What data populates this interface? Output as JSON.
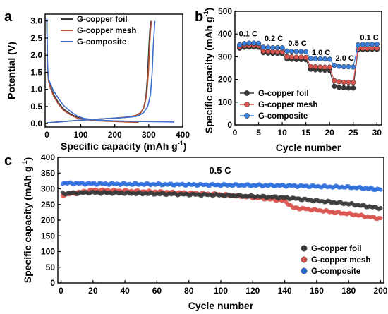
{
  "chart_data": [
    {
      "panel": "a",
      "type": "line",
      "xlabel": "Specific capacity (mAh g",
      "xlabel_sup": "-1",
      "xlabel_tail": ")",
      "ylabel": "Potential (V)",
      "xlim": [
        -5,
        400
      ],
      "ylim": [
        -0.1,
        3.2
      ],
      "xticks": [
        "0",
        "100",
        "200",
        "300",
        "400"
      ],
      "yticks": [
        "0.0",
        "0.5",
        "1.0",
        "1.5",
        "2.0",
        "2.5",
        "3.0"
      ],
      "legend_position": "top-right",
      "series": [
        {
          "name": "G-copper foil",
          "color": "#3a3a3a",
          "discharge": [
            [
              0,
              3.05
            ],
            [
              2,
              1.6
            ],
            [
              5,
              1.25
            ],
            [
              10,
              1.1
            ],
            [
              20,
              0.85
            ],
            [
              35,
              0.6
            ],
            [
              50,
              0.42
            ],
            [
              70,
              0.28
            ],
            [
              90,
              0.18
            ],
            [
              110,
              0.13
            ],
            [
              150,
              0.09
            ],
            [
              200,
              0.07
            ],
            [
              250,
              0.05
            ],
            [
              270,
              0.03
            ]
          ],
          "charge": [
            [
              0,
              0.02
            ],
            [
              50,
              0.06
            ],
            [
              100,
              0.1
            ],
            [
              150,
              0.13
            ],
            [
              200,
              0.16
            ],
            [
              240,
              0.19
            ],
            [
              260,
              0.22
            ],
            [
              275,
              0.3
            ],
            [
              285,
              0.45
            ],
            [
              292,
              0.8
            ],
            [
              297,
              1.5
            ],
            [
              300,
              2.2
            ],
            [
              303,
              2.7
            ],
            [
              306,
              3.0
            ]
          ]
        },
        {
          "name": "G-copper mesh",
          "color": "#b5533c",
          "discharge": [
            [
              0,
              3.05
            ],
            [
              2,
              1.6
            ],
            [
              5,
              1.25
            ],
            [
              10,
              1.05
            ],
            [
              20,
              0.8
            ],
            [
              35,
              0.55
            ],
            [
              50,
              0.38
            ],
            [
              70,
              0.25
            ],
            [
              90,
              0.16
            ],
            [
              110,
              0.12
            ],
            [
              150,
              0.08
            ],
            [
              200,
              0.06
            ],
            [
              250,
              0.04
            ],
            [
              270,
              0.02
            ]
          ],
          "charge": [
            [
              0,
              0.02
            ],
            [
              50,
              0.06
            ],
            [
              100,
              0.1
            ],
            [
              150,
              0.13
            ],
            [
              200,
              0.16
            ],
            [
              240,
              0.2
            ],
            [
              262,
              0.24
            ],
            [
              277,
              0.33
            ],
            [
              287,
              0.5
            ],
            [
              294,
              0.85
            ],
            [
              299,
              1.5
            ],
            [
              302,
              2.2
            ],
            [
              305,
              2.7
            ],
            [
              308,
              3.0
            ]
          ]
        },
        {
          "name": "G-composite",
          "color": "#3b6fcb",
          "discharge": [
            [
              0,
              3.08
            ],
            [
              2,
              1.7
            ],
            [
              5,
              1.3
            ],
            [
              10,
              1.18
            ],
            [
              20,
              0.95
            ],
            [
              35,
              0.72
            ],
            [
              50,
              0.52
            ],
            [
              70,
              0.35
            ],
            [
              90,
              0.22
            ],
            [
              110,
              0.15
            ],
            [
              150,
              0.1
            ],
            [
              200,
              0.08
            ],
            [
              280,
              0.06
            ],
            [
              360,
              0.05
            ],
            [
              375,
              0.04
            ]
          ],
          "charge": [
            [
              0,
              0.02
            ],
            [
              50,
              0.06
            ],
            [
              100,
              0.1
            ],
            [
              150,
              0.13
            ],
            [
              200,
              0.16
            ],
            [
              245,
              0.19
            ],
            [
              268,
              0.22
            ],
            [
              285,
              0.32
            ],
            [
              297,
              0.5
            ],
            [
              305,
              0.85
            ],
            [
              310,
              1.5
            ],
            [
              313,
              2.2
            ],
            [
              316,
              2.7
            ],
            [
              318,
              3.0
            ]
          ]
        }
      ]
    },
    {
      "panel": "b",
      "type": "line",
      "xlabel": "Cycle number",
      "ylabel": "Specific capacity (mAh g",
      "ylabel_sup": "-1",
      "ylabel_tail": ")",
      "xlim": [
        0,
        31
      ],
      "ylim": [
        0,
        500
      ],
      "xticks": [
        "0",
        "5",
        "10",
        "15",
        "20",
        "25",
        "30"
      ],
      "yticks": [
        "0",
        "100",
        "200",
        "300",
        "400",
        "500"
      ],
      "rate_labels": [
        {
          "text": "0.1 C",
          "x": 2.8,
          "y": 390
        },
        {
          "text": "0.2 C",
          "x": 8.2,
          "y": 370
        },
        {
          "text": "0.5 C",
          "x": 13.2,
          "y": 348
        },
        {
          "text": "1.0 C",
          "x": 18.2,
          "y": 308
        },
        {
          "text": "2.0 C",
          "x": 23.2,
          "y": 282
        },
        {
          "text": "0.1 C",
          "x": 28.4,
          "y": 375
        }
      ],
      "legend_position": "bottom-left",
      "series": [
        {
          "name": "G-copper foil",
          "color": "#3a3a3a",
          "values": [
            338,
            342,
            343,
            343,
            342,
            318,
            316,
            315,
            314,
            313,
            290,
            289,
            288,
            288,
            287,
            245,
            243,
            242,
            241,
            240,
            170,
            165,
            163,
            162,
            162,
            330,
            332,
            332,
            333,
            333
          ]
        },
        {
          "name": "G-copper mesh",
          "color": "#d9534f",
          "values": [
            345,
            348,
            349,
            349,
            348,
            325,
            324,
            323,
            322,
            322,
            300,
            299,
            298,
            298,
            297,
            258,
            256,
            255,
            254,
            254,
            195,
            190,
            188,
            188,
            187,
            335,
            337,
            337,
            338,
            338
          ]
        },
        {
          "name": "G-composite",
          "color": "#3b7fdc",
          "values": [
            352,
            358,
            360,
            360,
            359,
            342,
            341,
            340,
            340,
            339,
            325,
            324,
            323,
            323,
            322,
            292,
            291,
            290,
            290,
            289,
            262,
            258,
            256,
            256,
            255,
            352,
            354,
            354,
            355,
            355
          ]
        }
      ]
    },
    {
      "panel": "c",
      "type": "scatter",
      "xlabel": "Cycle number",
      "ylabel": "Specific capacity (mAh g",
      "ylabel_sup": "-1",
      "ylabel_tail": ")",
      "xlim": [
        -2,
        202
      ],
      "ylim": [
        0,
        400
      ],
      "xticks": [
        "0",
        "20",
        "40",
        "60",
        "80",
        "100",
        "120",
        "140",
        "160",
        "180",
        "200"
      ],
      "yticks": [
        "0",
        "50",
        "100",
        "150",
        "200",
        "250",
        "300",
        "350",
        "400"
      ],
      "annotation": "0.5 C",
      "legend_position": "bottom-right",
      "series": [
        {
          "name": "G-copper foil",
          "color": "#3a3a3a",
          "trend": [
            [
              1,
              285
            ],
            [
              20,
              288
            ],
            [
              60,
              284
            ],
            [
              100,
              280
            ],
            [
              140,
              272
            ],
            [
              180,
              252
            ],
            [
              200,
              238
            ]
          ]
        },
        {
          "name": "G-copper mesh",
          "color": "#d9534f",
          "trend": [
            [
              1,
              280
            ],
            [
              20,
              296
            ],
            [
              60,
              290
            ],
            [
              100,
              282
            ],
            [
              125,
              270
            ],
            [
              140,
              262
            ],
            [
              145,
              240
            ],
            [
              160,
              232
            ],
            [
              180,
              220
            ],
            [
              200,
              205
            ]
          ]
        },
        {
          "name": "G-composite",
          "color": "#2f6fdb",
          "trend": [
            [
              1,
              318
            ],
            [
              20,
              316
            ],
            [
              60,
              314
            ],
            [
              100,
              312
            ],
            [
              140,
              310
            ],
            [
              180,
              305
            ],
            [
              200,
              298
            ]
          ]
        }
      ]
    }
  ]
}
